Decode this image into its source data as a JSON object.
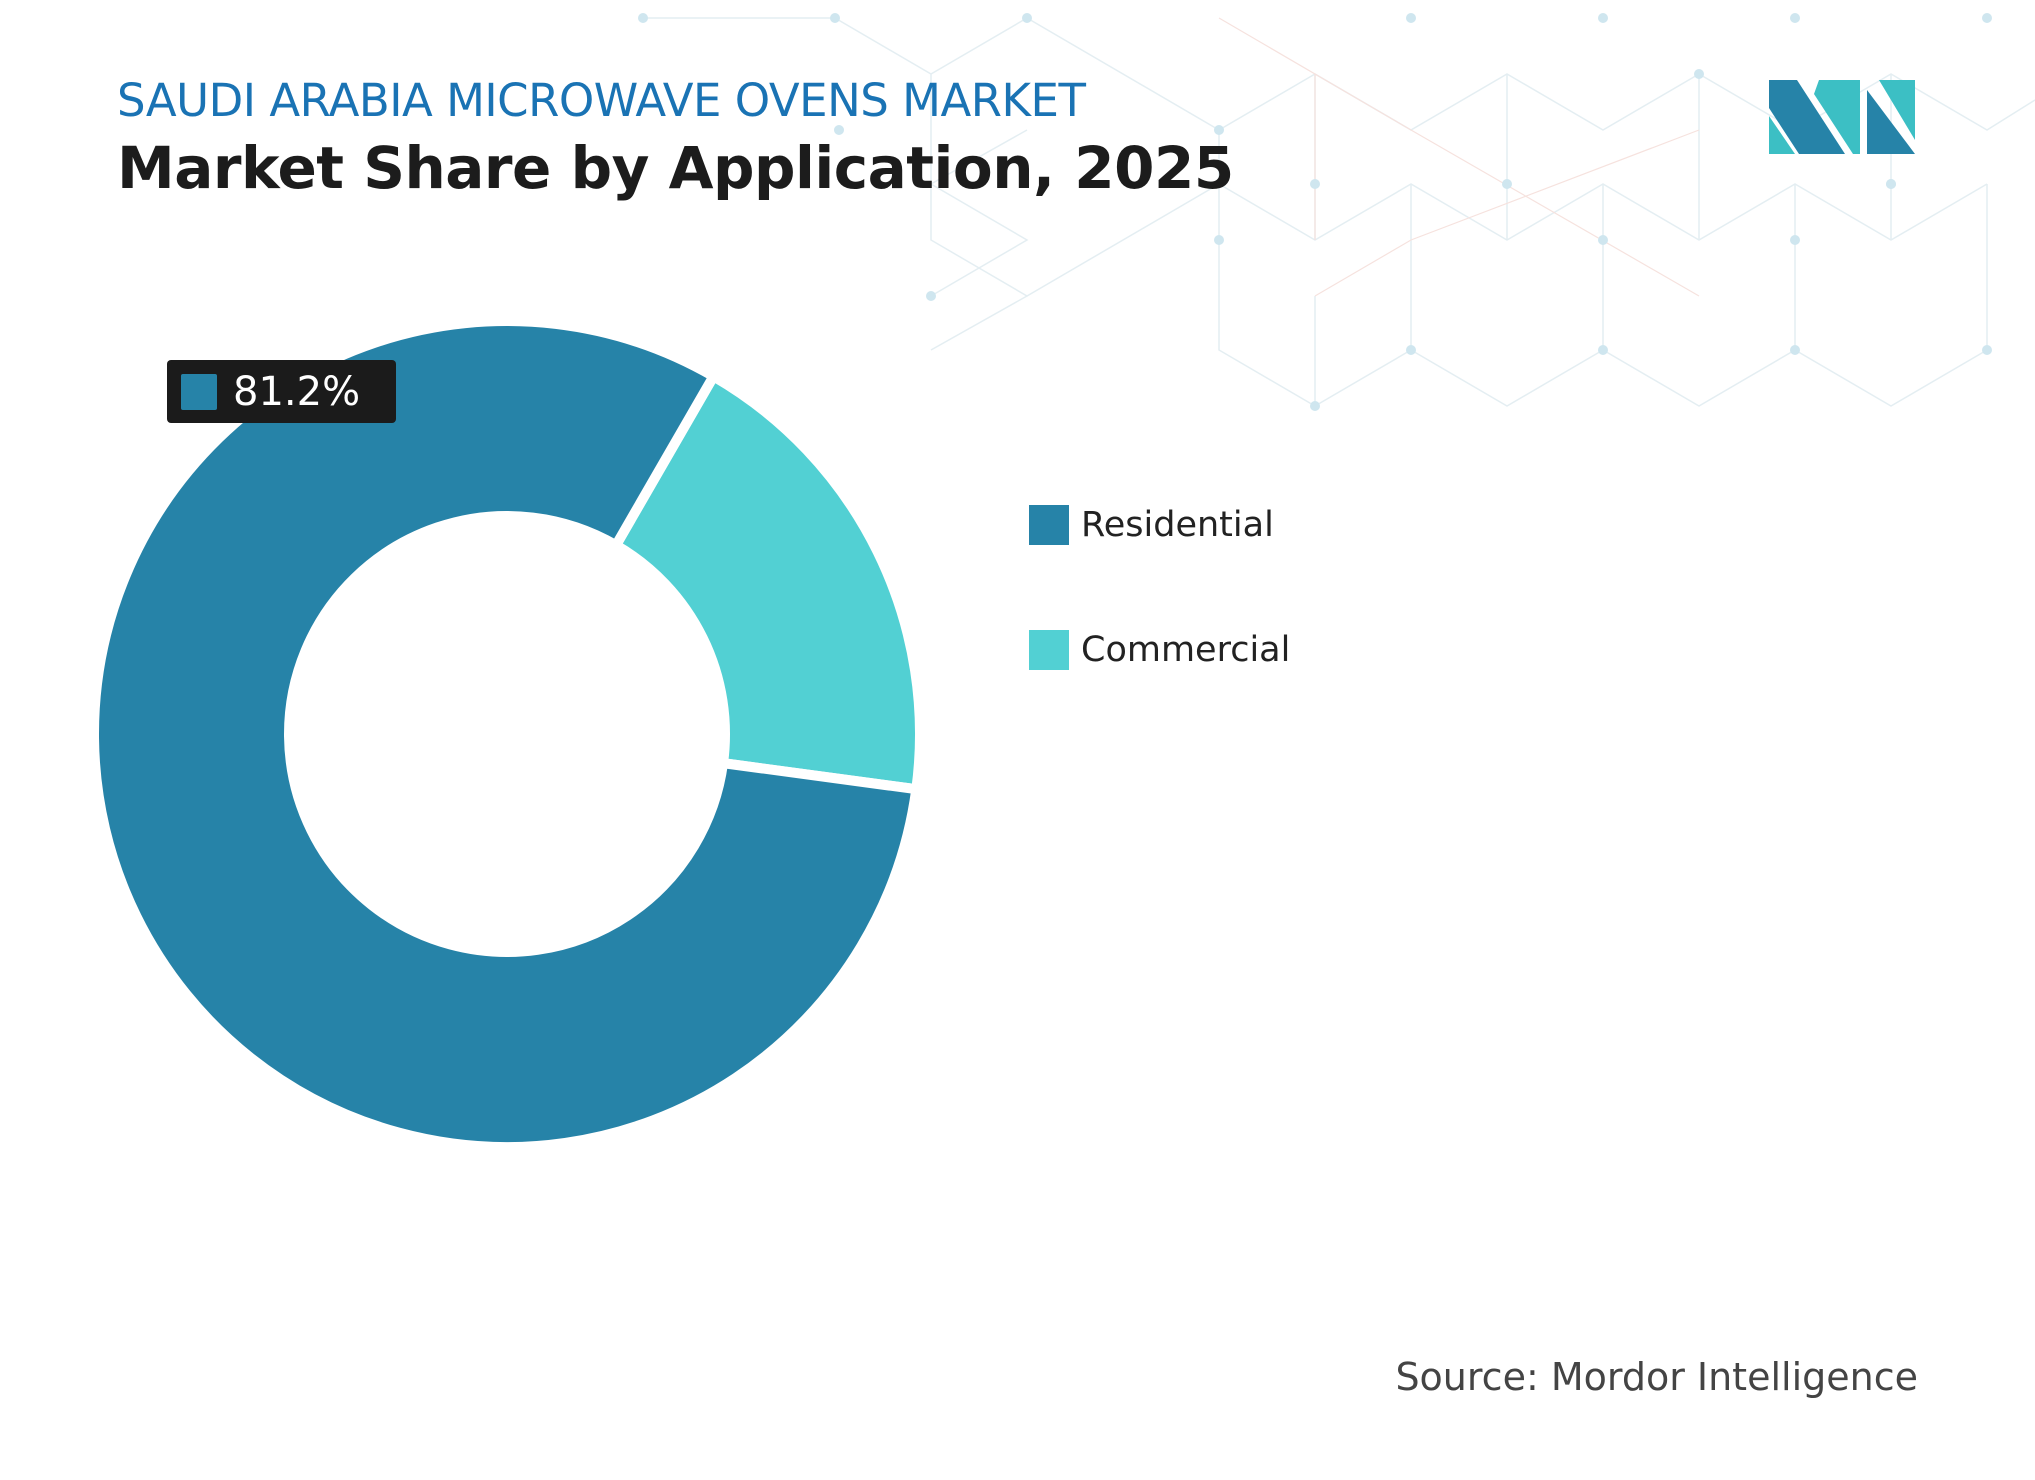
{
  "header": {
    "subtitle": "SAUDI ARABIA MICROWAVE OVENS MARKET",
    "title": "Market Share by Application, 2025"
  },
  "colors": {
    "residential": "#2683a8",
    "commercial": "#52d0d3",
    "title_blue": "#1a73b4"
  },
  "chart_data": {
    "type": "pie",
    "donut": true,
    "title": "Market Share by Application, 2025",
    "categories": [
      "Residential",
      "Commercial"
    ],
    "values": [
      81.2,
      18.8
    ],
    "unit": "%",
    "data_labels": [
      {
        "category": "Residential",
        "text": "81.2%"
      }
    ],
    "legend": "right"
  },
  "legend": {
    "items": [
      {
        "label": "Residential"
      },
      {
        "label": "Commercial"
      }
    ]
  },
  "source": "Source: Mordor Intelligence",
  "logo": {
    "icon": "mordor-intelligence-logo"
  }
}
